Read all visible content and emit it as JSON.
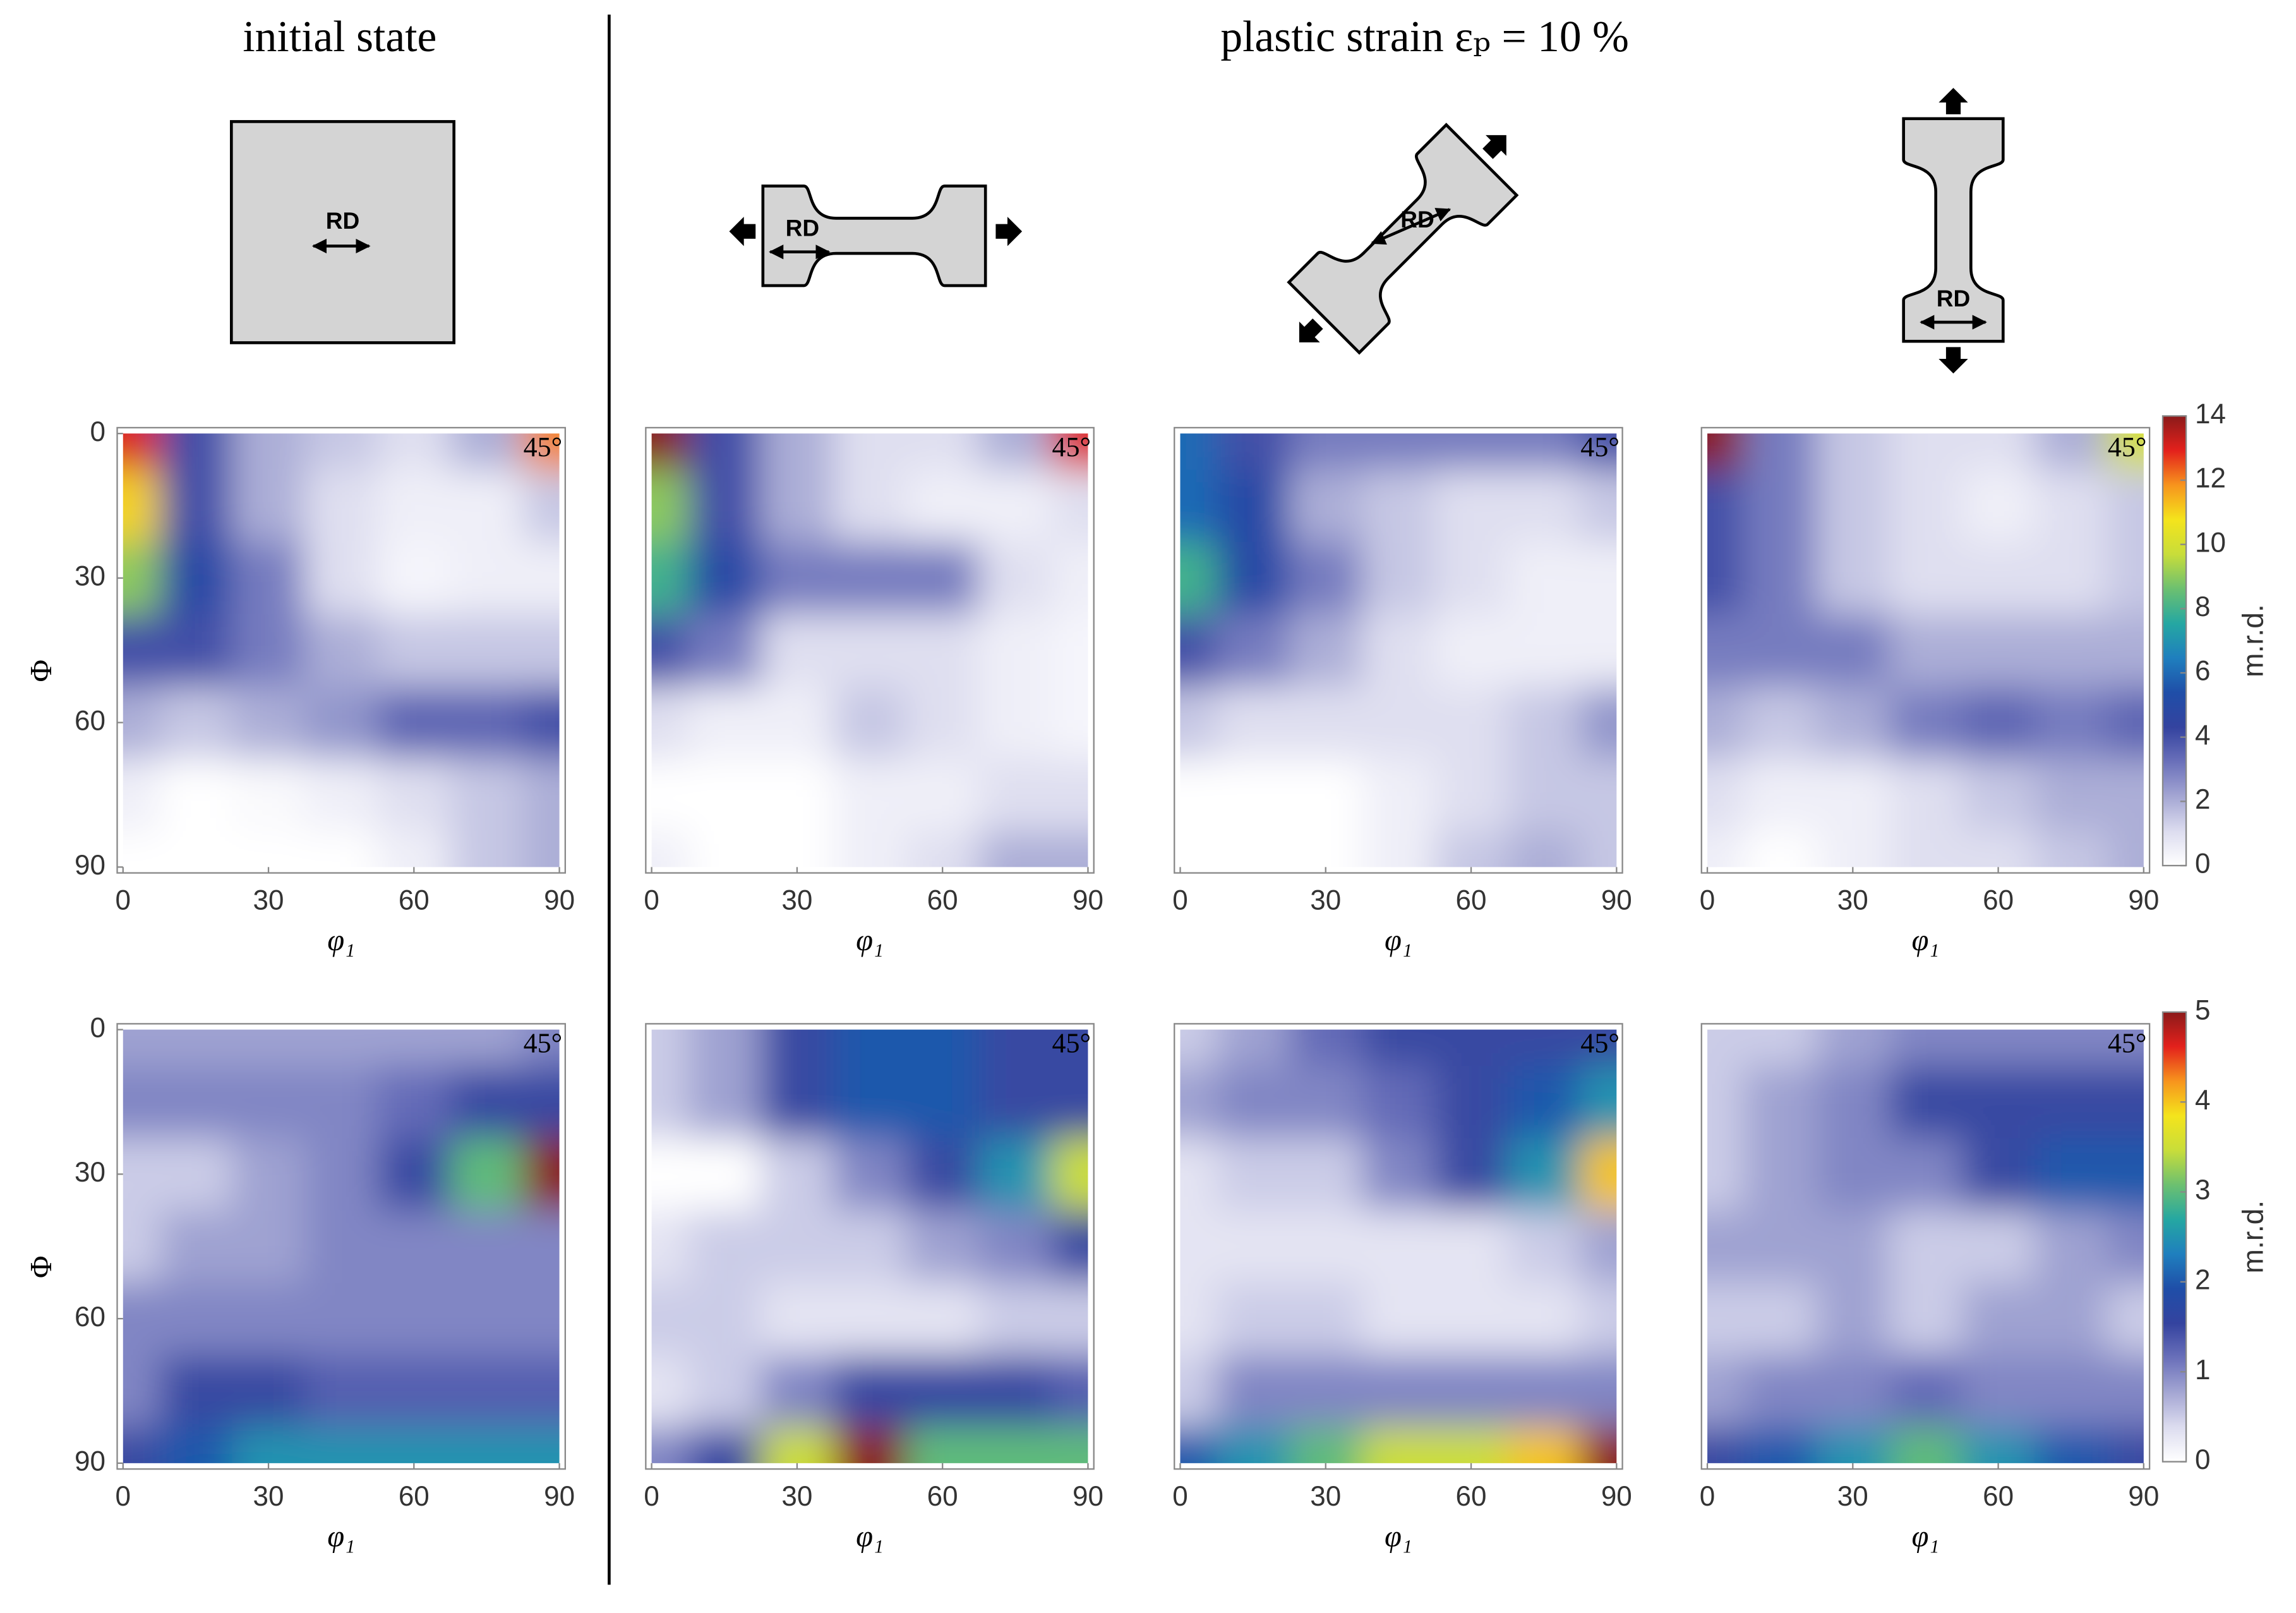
{
  "titles": [
    "initial state",
    "plastic strain εₚ = 10 %"
  ],
  "specimens": [
    "RD",
    "RD",
    "RD",
    "RD"
  ],
  "colormap": [
    "#ffffff",
    "#dcdcef",
    "#a4a6d3",
    "#6a70ba",
    "#34439f",
    "#1f4ea8",
    "#1f7fbe",
    "#25a7a2",
    "#6cc070",
    "#c8dd3a",
    "#f4e41c",
    "#f7941d",
    "#e3211c",
    "#8b1a1a"
  ],
  "chart_data": [
    {
      "type": "contour",
      "x": [
        0,
        15,
        30,
        45,
        60,
        75,
        90
      ],
      "y": [
        0,
        15,
        30,
        45,
        60,
        75,
        90
      ],
      "zlim": [
        0,
        14
      ],
      "xlim": [
        0,
        90
      ],
      "ylim": [
        0,
        90
      ],
      "xticks": [
        0,
        30,
        60,
        90
      ],
      "yticks": [
        0,
        30,
        60,
        90
      ],
      "xlabel": "φ₁",
      "ylabel": "Φ",
      "annotation": "45°",
      "z": [
        [
          13,
          4,
          2,
          1.5,
          1,
          2,
          12
        ],
        [
          11,
          4,
          2,
          1,
          0.5,
          0.5,
          1.5
        ],
        [
          9,
          5,
          3,
          1,
          0.3,
          0.5,
          0.5
        ],
        [
          4,
          4,
          3,
          2,
          1.5,
          1.5,
          1.5
        ],
        [
          2,
          1.5,
          2,
          2.5,
          3.5,
          3.5,
          4
        ],
        [
          0.5,
          0,
          0.2,
          0.5,
          1,
          1.5,
          2
        ],
        [
          0,
          0,
          0,
          0,
          0.5,
          1.5,
          2
        ]
      ]
    },
    {
      "type": "contour",
      "x": [
        0,
        15,
        30,
        45,
        60,
        75,
        90
      ],
      "y": [
        0,
        15,
        30,
        45,
        60,
        75,
        90
      ],
      "zlim": [
        0,
        14
      ],
      "xlim": [
        0,
        90
      ],
      "ylim": [
        0,
        90
      ],
      "xticks": [
        0,
        30,
        60,
        90
      ],
      "xlabel": "φ₁",
      "annotation": "45°",
      "z": [
        [
          14,
          4,
          2,
          1,
          1,
          2,
          13
        ],
        [
          9,
          4,
          2,
          1,
          0.5,
          0.5,
          1
        ],
        [
          8,
          5,
          3,
          3,
          3,
          1,
          0.5
        ],
        [
          4,
          3,
          1,
          1,
          1,
          0.5,
          0.3
        ],
        [
          1,
          0.5,
          0.5,
          1.5,
          1,
          0.5,
          0.3
        ],
        [
          0,
          0,
          0,
          0.5,
          0.5,
          1,
          1
        ],
        [
          0.5,
          0,
          0,
          0.5,
          1,
          2,
          2
        ]
      ]
    },
    {
      "type": "contour",
      "x": [
        0,
        15,
        30,
        45,
        60,
        75,
        90
      ],
      "y": [
        0,
        15,
        30,
        45,
        60,
        75,
        90
      ],
      "zlim": [
        0,
        14
      ],
      "xlim": [
        0,
        90
      ],
      "ylim": [
        0,
        90
      ],
      "xticks": [
        0,
        30,
        60,
        90
      ],
      "xlabel": "φ₁",
      "annotation": "45°",
      "z": [
        [
          6,
          4,
          3,
          3,
          3,
          3,
          4
        ],
        [
          6,
          5,
          2,
          1.5,
          1,
          1,
          1.5
        ],
        [
          8,
          5,
          3,
          1.5,
          1,
          0.5,
          0.5
        ],
        [
          4,
          3,
          2,
          1,
          0.5,
          0.5,
          0.5
        ],
        [
          1.5,
          1,
          1,
          1,
          1,
          1.5,
          2.5
        ],
        [
          0,
          0,
          0,
          0.5,
          1,
          1.5,
          1.5
        ],
        [
          0,
          0,
          0,
          0.5,
          1.5,
          2,
          1.5
        ]
      ]
    },
    {
      "type": "contour",
      "x": [
        0,
        15,
        30,
        45,
        60,
        75,
        90
      ],
      "y": [
        0,
        15,
        30,
        45,
        60,
        75,
        90
      ],
      "zlim": [
        0,
        14
      ],
      "xlim": [
        0,
        90
      ],
      "ylim": [
        0,
        90
      ],
      "xticks": [
        0,
        30,
        60,
        90
      ],
      "xlabel": "φ₁",
      "annotation": "45°",
      "colorbar": {
        "ticks": [
          0,
          2,
          4,
          6,
          8,
          10,
          12,
          14
        ],
        "label": "m.r.d."
      },
      "z": [
        [
          14,
          3,
          1.5,
          1,
          1,
          2,
          10
        ],
        [
          4,
          3,
          1.5,
          1,
          0.5,
          1,
          1.5
        ],
        [
          4,
          3,
          1.5,
          1,
          1,
          1,
          1.5
        ],
        [
          3,
          3,
          3,
          2,
          2,
          2,
          2
        ],
        [
          2,
          1.5,
          2,
          3,
          3.5,
          3,
          3.5
        ],
        [
          1,
          0.5,
          0.5,
          1,
          1.5,
          2,
          2
        ],
        [
          0.5,
          0,
          0.5,
          1,
          1,
          1.5,
          2
        ]
      ]
    },
    {
      "type": "contour",
      "x": [
        0,
        15,
        30,
        45,
        60,
        75,
        90
      ],
      "y": [
        0,
        15,
        30,
        45,
        60,
        75,
        90
      ],
      "zlim": [
        0,
        5
      ],
      "xlim": [
        0,
        90
      ],
      "ylim": [
        0,
        90
      ],
      "xticks": [
        0,
        30,
        60,
        90
      ],
      "yticks": [
        0,
        30,
        60,
        90
      ],
      "xlabel": "φ₁",
      "ylabel": "Φ",
      "annotation": "45°",
      "z": [
        [
          0.8,
          0.8,
          0.8,
          0.8,
          0.8,
          0.8,
          1
        ],
        [
          1,
          1,
          1,
          1,
          1.2,
          1.5,
          1.5
        ],
        [
          0.5,
          0.5,
          0.8,
          1,
          1.5,
          3,
          5
        ],
        [
          0.5,
          0.8,
          0.8,
          1,
          1,
          1,
          1
        ],
        [
          1,
          1,
          1,
          1,
          1,
          1,
          1
        ],
        [
          1,
          1.5,
          1.5,
          1.3,
          1.3,
          1.3,
          1.3
        ],
        [
          1.5,
          2,
          2.5,
          2.5,
          2.5,
          2.5,
          2.5
        ]
      ]
    },
    {
      "type": "contour",
      "x": [
        0,
        15,
        30,
        45,
        60,
        75,
        90
      ],
      "y": [
        0,
        15,
        30,
        45,
        60,
        75,
        90
      ],
      "zlim": [
        0,
        5
      ],
      "xlim": [
        0,
        90
      ],
      "ylim": [
        0,
        90
      ],
      "xticks": [
        0,
        30,
        60,
        90
      ],
      "xlabel": "φ₁",
      "annotation": "45°",
      "z": [
        [
          0.5,
          0.8,
          1.5,
          2,
          2,
          1.5,
          1.5
        ],
        [
          0.5,
          0.8,
          1.5,
          2,
          2,
          1.5,
          1.5
        ],
        [
          0,
          0,
          0.5,
          1,
          1.5,
          2.5,
          3.5
        ],
        [
          0.3,
          0.5,
          0.5,
          0.5,
          0.8,
          1,
          1.5
        ],
        [
          0.5,
          0.5,
          0.3,
          0.3,
          0.3,
          0.5,
          0.5
        ],
        [
          0.3,
          0.5,
          1,
          1.5,
          1.5,
          1.5,
          1.3
        ],
        [
          1,
          1.5,
          3.5,
          5,
          3,
          3,
          3
        ]
      ]
    },
    {
      "type": "contour",
      "x": [
        0,
        15,
        30,
        45,
        60,
        75,
        90
      ],
      "y": [
        0,
        15,
        30,
        45,
        60,
        75,
        90
      ],
      "zlim": [
        0,
        5
      ],
      "xlim": [
        0,
        90
      ],
      "ylim": [
        0,
        90
      ],
      "xticks": [
        0,
        30,
        60,
        90
      ],
      "xlabel": "φ₁",
      "annotation": "45°",
      "z": [
        [
          0.5,
          0.8,
          1.2,
          1.5,
          1.5,
          1.5,
          1.5
        ],
        [
          0.8,
          1,
          1,
          1.2,
          1.5,
          2,
          2.5
        ],
        [
          0.3,
          0.5,
          0.5,
          1,
          1.5,
          2.5,
          4
        ],
        [
          0.3,
          0.3,
          0.3,
          0.3,
          0.3,
          0.5,
          0.8
        ],
        [
          0.3,
          0.5,
          0.5,
          0.3,
          0.3,
          0.3,
          0.5
        ],
        [
          0.5,
          1,
          1,
          1,
          1,
          1,
          1
        ],
        [
          2,
          2.5,
          3,
          3.5,
          3.5,
          4,
          5
        ]
      ]
    },
    {
      "type": "contour",
      "x": [
        0,
        15,
        30,
        45,
        60,
        75,
        90
      ],
      "y": [
        0,
        15,
        30,
        45,
        60,
        75,
        90
      ],
      "zlim": [
        0,
        5
      ],
      "xlim": [
        0,
        90
      ],
      "ylim": [
        0,
        90
      ],
      "xticks": [
        0,
        30,
        60,
        90
      ],
      "xlabel": "φ₁",
      "annotation": "45°",
      "colorbar": {
        "ticks": [
          0,
          1,
          2,
          3,
          4,
          5
        ],
        "label": "m.r.d."
      },
      "z": [
        [
          0.5,
          0.5,
          0.8,
          1,
          1,
          1,
          1
        ],
        [
          0.5,
          0.8,
          1,
          1.5,
          1.5,
          1.5,
          1.5
        ],
        [
          0.5,
          0.8,
          1,
          1,
          1.5,
          2,
          2
        ],
        [
          0.8,
          0.8,
          0.8,
          0.5,
          0.5,
          0.8,
          1
        ],
        [
          0.5,
          0.5,
          0.8,
          0.5,
          0.8,
          0.8,
          0.5
        ],
        [
          0.8,
          1,
          1,
          1.2,
          1,
          1,
          1
        ],
        [
          1.5,
          2,
          2.5,
          3,
          2.5,
          2,
          1.5
        ]
      ]
    }
  ]
}
